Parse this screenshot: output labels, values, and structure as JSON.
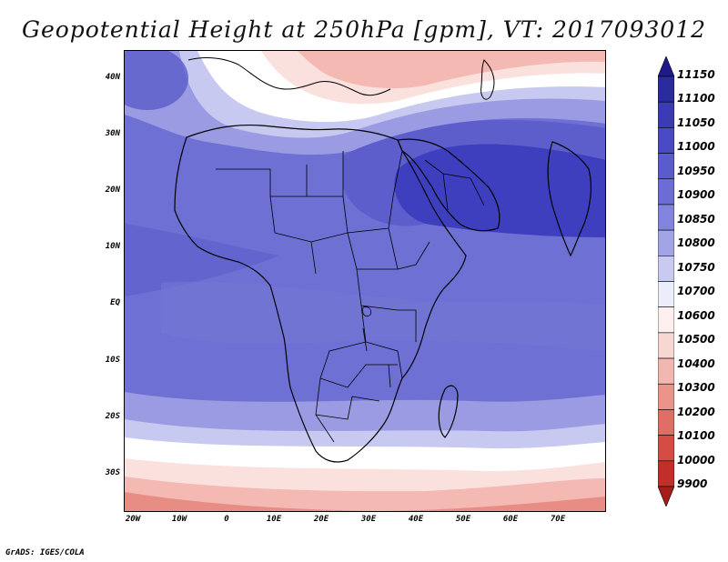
{
  "title": "Geopotential Height at 250hPa [gpm], VT: 2017093012",
  "footer": "GrADS: IGES/COLA",
  "y_ticks": [
    "40N",
    "30N",
    "20N",
    "10N",
    "EQ",
    "10S",
    "20S",
    "30S"
  ],
  "x_ticks": [
    "20W",
    "10W",
    "0",
    "10E",
    "20E",
    "30E",
    "40E",
    "50E",
    "60E",
    "70E"
  ],
  "colorbar": {
    "labels": [
      "11150",
      "11100",
      "11050",
      "11000",
      "10950",
      "10900",
      "10850",
      "10800",
      "10750",
      "10700",
      "10600",
      "10500",
      "10400",
      "10300",
      "10200",
      "10100",
      "10000",
      "9900"
    ],
    "colors": [
      "#1f1a8a",
      "#2a2c9e",
      "#3b3cb5",
      "#4a4bc4",
      "#5a5bcc",
      "#6c6dd4",
      "#8283dc",
      "#a3a4e6",
      "#c9caf2",
      "#ecedfa",
      "#fdf0ee",
      "#f8d6d2",
      "#f2b7b1",
      "#ea948c",
      "#e06e66",
      "#d44c44",
      "#c22f2a",
      "#a51d1a"
    ]
  },
  "map_colors": {
    "deep_blue": "#3d3fbf",
    "blue": "#5b5ccb",
    "mid_blue": "#6e70d3",
    "light_blue": "#9a9be2",
    "pale_blue": "#c8c9f1",
    "white": "#ffffff",
    "pale_red": "#fbe1de",
    "light_red": "#f3b9b2",
    "red": "#e88d84"
  }
}
